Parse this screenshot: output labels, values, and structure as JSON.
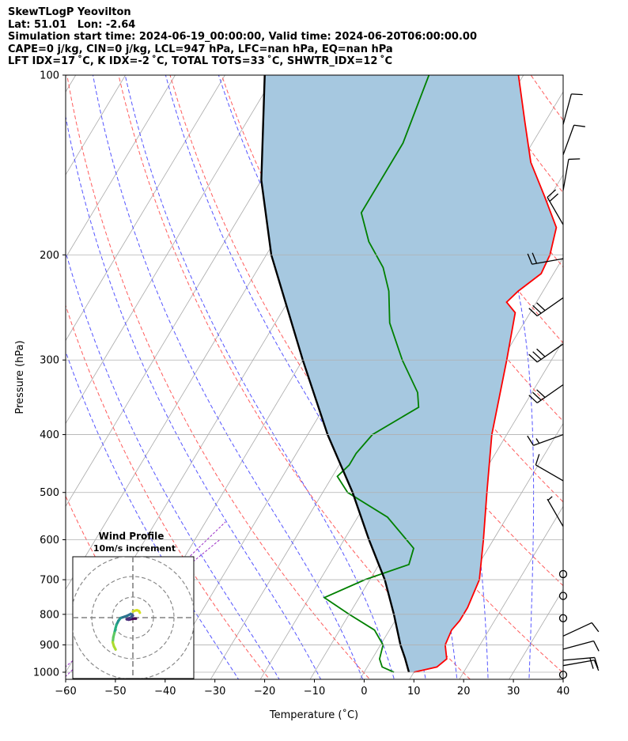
{
  "header": {
    "line1": "SkewTLogP Yeovilton",
    "line2": "Lat: 51.01   Lon: -2.64",
    "line3": "Simulation start time: 2024-06-19_00:00:00, Valid time: 2024-06-20T06:00:00.00",
    "line4": "CAPE=0 j/kg, CIN=0 j/kg, LCL=947 hPa, LFC=nan hPa, EQ=nan hPa",
    "line5": "LFT IDX=17 ˚C, K IDX=-2 ˚C, TOTAL TOTS=33 ˚C, SHWTR_IDX=12 ˚C"
  },
  "chart_data": {
    "type": "line",
    "xlabel": "Temperature (˚C)",
    "ylabel": "Pressure (hPa)",
    "xlim": [
      -60,
      40
    ],
    "ylim": [
      1050,
      100
    ],
    "yscale": "log",
    "skew": true,
    "x_ticks": [
      "−60",
      "−50",
      "−40",
      "−30",
      "−20",
      "−10",
      "0",
      "10",
      "20",
      "30",
      "40"
    ],
    "y_ticks": [
      "100",
      "200",
      "300",
      "400",
      "500",
      "600",
      "700",
      "800",
      "900",
      "1000"
    ],
    "grid": true,
    "series": [
      {
        "role": "temperature",
        "color": "#ff0000",
        "points": [
          [
            1000,
            10
          ],
          [
            980,
            14
          ],
          [
            950,
            15
          ],
          [
            900,
            13
          ],
          [
            850,
            12.5
          ],
          [
            820,
            13
          ],
          [
            780,
            13
          ],
          [
            700,
            12
          ],
          [
            600,
            8
          ],
          [
            500,
            3
          ],
          [
            400,
            -3
          ],
          [
            300,
            -9
          ],
          [
            250,
            -13
          ],
          [
            240,
            -16
          ],
          [
            230,
            -15
          ],
          [
            215,
            -12.5
          ],
          [
            200,
            -13
          ],
          [
            180,
            -15
          ],
          [
            160,
            -21
          ],
          [
            140,
            -28
          ],
          [
            120,
            -34
          ],
          [
            100,
            -41
          ]
        ]
      },
      {
        "role": "dewpoint",
        "color": "#008000",
        "points": [
          [
            1000,
            6
          ],
          [
            980,
            3
          ],
          [
            950,
            1.5
          ],
          [
            900,
            0.5
          ],
          [
            850,
            -3
          ],
          [
            800,
            -10
          ],
          [
            750,
            -17
          ],
          [
            700,
            -11
          ],
          [
            660,
            -4
          ],
          [
            620,
            -5
          ],
          [
            550,
            -14
          ],
          [
            500,
            -25
          ],
          [
            470,
            -29
          ],
          [
            450,
            -28
          ],
          [
            430,
            -28
          ],
          [
            400,
            -27
          ],
          [
            360,
            -21
          ],
          [
            340,
            -23
          ],
          [
            300,
            -30
          ],
          [
            260,
            -37
          ],
          [
            230,
            -41
          ],
          [
            210,
            -45
          ],
          [
            190,
            -51
          ],
          [
            170,
            -56
          ],
          [
            150,
            -56
          ],
          [
            130,
            -56
          ],
          [
            100,
            -59
          ]
        ]
      },
      {
        "role": "parcel",
        "color": "#000000",
        "points": [
          [
            1000,
            9
          ],
          [
            947,
            6.5
          ],
          [
            900,
            4
          ],
          [
            800,
            -1
          ],
          [
            700,
            -7
          ],
          [
            600,
            -15
          ],
          [
            500,
            -24
          ],
          [
            400,
            -36
          ],
          [
            300,
            -50
          ],
          [
            200,
            -69
          ],
          [
            150,
            -80
          ],
          [
            100,
            -92
          ]
        ]
      }
    ],
    "shaded_region": {
      "between": [
        "parcel",
        "temperature"
      ],
      "color": "#a6c8e0"
    },
    "background_lines": {
      "isotherms": {
        "color": "#a9a9a9",
        "step": 10
      },
      "dry_adiabats": {
        "color": "#ff5c5c",
        "theta_k": [
          233,
          253,
          273,
          293,
          313,
          333,
          353,
          373,
          393,
          413,
          433,
          453
        ]
      },
      "moist_adiabats": {
        "color": "#5555ff",
        "surface_t_c": [
          -20,
          -12,
          -4,
          4,
          10,
          16,
          22,
          28,
          36
        ]
      },
      "mixing_ratio": {
        "color": "#9b30c7"
      }
    },
    "wind_barbs": [
      {
        "p": 1010,
        "speed_kt": 0,
        "dir_deg": 0
      },
      {
        "p": 975,
        "speed_kt": 10,
        "dir_deg": 80
      },
      {
        "p": 955,
        "speed_kt": 20,
        "dir_deg": 85
      },
      {
        "p": 915,
        "speed_kt": 10,
        "dir_deg": 75
      },
      {
        "p": 870,
        "speed_kt": 10,
        "dir_deg": 65
      },
      {
        "p": 812,
        "speed_kt": 0,
        "dir_deg": 0
      },
      {
        "p": 745,
        "speed_kt": 0,
        "dir_deg": 0
      },
      {
        "p": 685,
        "speed_kt": 0,
        "dir_deg": 0
      },
      {
        "p": 570,
        "speed_kt": 5,
        "dir_deg": 330
      },
      {
        "p": 478,
        "speed_kt": 10,
        "dir_deg": 300
      },
      {
        "p": 400,
        "speed_kt": 15,
        "dir_deg": 250
      },
      {
        "p": 330,
        "speed_kt": 30,
        "dir_deg": 235
      },
      {
        "p": 282,
        "speed_kt": 30,
        "dir_deg": 235
      },
      {
        "p": 236,
        "speed_kt": 30,
        "dir_deg": 235
      },
      {
        "p": 203,
        "speed_kt": 20,
        "dir_deg": 260
      },
      {
        "p": 178,
        "speed_kt": 20,
        "dir_deg": 330
      },
      {
        "p": 156,
        "speed_kt": 10,
        "dir_deg": 10
      },
      {
        "p": 136,
        "speed_kt": 10,
        "dir_deg": 20
      },
      {
        "p": 121,
        "speed_kt": 10,
        "dir_deg": 15
      }
    ],
    "hodograph": {
      "title": "Wind Profile",
      "subtitle": "10m/s increment",
      "ring_step_ms": 10,
      "points": [
        [
          1.5,
          -0.5
        ],
        [
          0,
          -0.5
        ],
        [
          -2,
          -1
        ],
        [
          -3,
          -0.8
        ],
        [
          -1,
          0
        ],
        [
          0,
          1
        ],
        [
          -1,
          1.8
        ],
        [
          -3,
          0.8
        ],
        [
          -6,
          -0.2
        ],
        [
          -7,
          -1.5
        ],
        [
          -8,
          -3.5
        ],
        [
          -8.5,
          -5.5
        ],
        [
          -9,
          -7.5
        ],
        [
          -9.5,
          -9.5
        ],
        [
          -9.8,
          -12
        ],
        [
          -9.2,
          -14
        ],
        [
          -8.4,
          -15.5
        ]
      ],
      "late_points": [
        [
          0,
          3
        ],
        [
          1,
          3.4
        ],
        [
          2,
          3.6
        ],
        [
          3,
          3.2
        ],
        [
          3.4,
          2.4
        ]
      ]
    }
  }
}
